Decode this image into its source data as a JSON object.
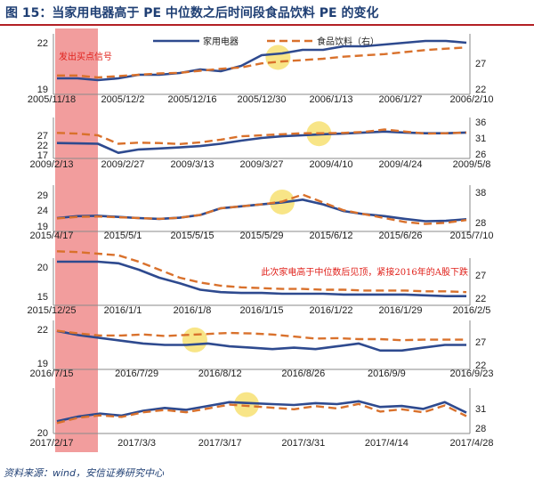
{
  "title": "图 15：当家用电器高于 PE 中位数之后时间段食品饮料 PE 的变化",
  "source": "资料来源：wind，安信证券研究中心",
  "colors": {
    "series_home_appliance": "#2e4a8f",
    "series_food_beverage": "#d9712c",
    "highlight_band": "#f08c8c",
    "highlight_circle": "#f7e27a",
    "note_text": "#e0201a",
    "axis": "#8a8a8a"
  },
  "legend": {
    "home_appliance": "家用电器",
    "food_beverage": "食品饮料（右）"
  },
  "chart_data": [
    {
      "type": "line",
      "x_labels": [
        "2005/11/18",
        "2005/12/2",
        "2005/12/16",
        "2005/12/30",
        "2006/1/13",
        "2006/1/27",
        "2006/2/10"
      ],
      "left_ticks": [
        "22",
        "19"
      ],
      "right_ticks": [
        "27",
        "22"
      ],
      "left_ylim": [
        19,
        22
      ],
      "right_ylim": [
        22,
        30
      ],
      "series": [
        {
          "name": "家用电器",
          "axis": "left",
          "values": [
            19.7,
            19.7,
            19.6,
            19.7,
            19.9,
            19.9,
            20.0,
            20.2,
            20.1,
            20.4,
            21.0,
            21.1,
            21.3,
            21.3,
            21.5,
            21.5,
            21.6,
            21.7,
            21.8,
            21.8,
            21.7
          ]
        },
        {
          "name": "食品饮料（右）",
          "axis": "right",
          "values": [
            24.3,
            24.3,
            24.0,
            24.2,
            24.4,
            24.6,
            24.7,
            25.0,
            25.3,
            25.5,
            26.1,
            26.4,
            26.6,
            26.8,
            27.1,
            27.3,
            27.5,
            27.8,
            28.1,
            28.3,
            28.5
          ]
        }
      ],
      "annotation": "发出买点信号",
      "highlight_x_index": 10.8
    },
    {
      "type": "line",
      "x_labels": [
        "2009/2/13",
        "2009/2/27",
        "2009/3/13",
        "2009/3/27",
        "2009/4/10",
        "2009/4/24",
        "2009/5/8"
      ],
      "left_ticks": [
        "27",
        "22",
        "17"
      ],
      "right_ticks": [
        "36",
        "31",
        "26"
      ],
      "left_ylim": [
        17,
        27
      ],
      "right_ylim": [
        26,
        36
      ],
      "series": [
        {
          "name": "家用电器",
          "axis": "left",
          "values": [
            20.5,
            20.4,
            20.3,
            17.6,
            18.6,
            18.9,
            19.2,
            19.6,
            20.3,
            21.2,
            22.0,
            22.5,
            22.8,
            23.1,
            23.3,
            23.6,
            23.9,
            23.6,
            23.4,
            23.4,
            23.6
          ]
        },
        {
          "name": "食品饮料（右）",
          "axis": "right",
          "values": [
            32.5,
            32.3,
            31.8,
            29.3,
            29.6,
            29.5,
            29.2,
            29.7,
            30.5,
            31.5,
            31.8,
            32.1,
            32.4,
            32.4,
            32.5,
            32.8,
            33.5,
            32.9,
            32.3,
            32.4,
            32.6
          ]
        }
      ],
      "highlight_x_index": 12.8
    },
    {
      "type": "line",
      "x_labels": [
        "2015/4/17",
        "2015/5/1",
        "2015/5/15",
        "2015/5/29",
        "2015/6/12",
        "2015/6/26",
        "2015/7/10"
      ],
      "left_ticks": [
        "29",
        "24",
        "19"
      ],
      "right_ticks": [
        "38",
        "28"
      ],
      "left_ylim": [
        19,
        29
      ],
      "right_ylim": [
        28,
        38
      ],
      "series": [
        {
          "name": "家用电器",
          "axis": "left",
          "values": [
            21.5,
            22.0,
            22.1,
            21.8,
            21.5,
            21.3,
            21.6,
            22.3,
            24.0,
            24.5,
            25.0,
            25.5,
            26.2,
            25.0,
            23.3,
            22.5,
            22.0,
            21.3,
            20.7,
            20.8,
            21.2
          ]
        },
        {
          "name": "食品饮料（右）",
          "axis": "right",
          "values": [
            30.4,
            30.8,
            30.9,
            30.7,
            30.5,
            30.3,
            30.6,
            31.3,
            33.0,
            33.5,
            34.0,
            34.7,
            36.5,
            34.5,
            32.5,
            31.5,
            30.5,
            29.5,
            29.0,
            29.3,
            30.0
          ]
        }
      ],
      "highlight_x_index": 11.0
    },
    {
      "type": "line",
      "x_labels": [
        "2015/12/25",
        "2016/1/1",
        "2016/1/8",
        "2016/1/15",
        "2016/1/22",
        "2016/1/29",
        "2016/2/5"
      ],
      "left_ticks": [
        "20",
        "15"
      ],
      "right_ticks": [
        "27",
        "22"
      ],
      "left_ylim": [
        15,
        20
      ],
      "right_ylim": [
        22,
        27
      ],
      "series": [
        {
          "name": "家用电器",
          "axis": "left",
          "values": [
            20.0,
            20.0,
            20.0,
            19.8,
            19.0,
            18.0,
            17.3,
            16.5,
            16.2,
            16.1,
            16.1,
            16.0,
            16.0,
            16.0,
            15.9,
            15.9,
            15.9,
            15.9,
            15.8,
            15.7,
            15.7
          ]
        },
        {
          "name": "食品饮料（右）",
          "axis": "right",
          "values": [
            28.3,
            28.2,
            28.0,
            27.8,
            27.0,
            26.0,
            25.0,
            24.4,
            24.0,
            23.8,
            23.7,
            23.6,
            23.6,
            23.5,
            23.5,
            23.4,
            23.4,
            23.4,
            23.3,
            23.3,
            23.2
          ]
        }
      ],
      "annotation": "此次家电高于中位数后见顶，紧接2016年的A股下跌"
    },
    {
      "type": "line",
      "x_labels": [
        "2016/7/15",
        "2016/7/29",
        "2016/8/12",
        "2016/8/26",
        "2016/9/9",
        "2016/9/23"
      ],
      "left_ticks": [
        "22",
        "19"
      ],
      "right_ticks": [
        "27",
        "22"
      ],
      "left_ylim": [
        19,
        22
      ],
      "right_ylim": [
        22,
        30
      ],
      "series": [
        {
          "name": "家用电器",
          "axis": "left",
          "values": [
            21.5,
            21.2,
            21.0,
            20.8,
            20.6,
            20.5,
            20.5,
            20.6,
            20.4,
            20.3,
            20.2,
            20.3,
            20.2,
            20.4,
            20.6,
            20.1,
            20.1,
            20.3,
            20.5,
            20.5
          ]
        },
        {
          "name": "食品饮料（右）",
          "axis": "right",
          "values": [
            28.7,
            28.2,
            27.8,
            27.8,
            28.0,
            27.7,
            27.9,
            28.1,
            28.3,
            28.2,
            28.0,
            27.6,
            27.2,
            27.3,
            27.1,
            27.1,
            26.9,
            27.0,
            27.0,
            27.0
          ]
        }
      ],
      "highlight_x_index": 6.4
    },
    {
      "type": "line",
      "x_labels": [
        "2017/2/17",
        "2017/3/3",
        "2017/3/17",
        "2017/3/31",
        "2017/4/14",
        "2017/4/28"
      ],
      "left_ticks": [
        "20"
      ],
      "right_ticks": [
        "31",
        "28"
      ],
      "left_ylim": [
        19.5,
        23.5
      ],
      "right_ylim": [
        27.5,
        32.5
      ],
      "series": [
        {
          "name": "家用电器",
          "axis": "left",
          "values": [
            20.4,
            20.9,
            21.2,
            21.0,
            21.5,
            21.8,
            21.6,
            22.0,
            22.4,
            22.3,
            22.2,
            22.1,
            22.3,
            22.2,
            22.5,
            21.9,
            22.0,
            21.7,
            22.4,
            21.3
          ]
        },
        {
          "name": "食品饮料（右）",
          "axis": "right",
          "values": [
            28.4,
            29.1,
            29.4,
            29.2,
            29.8,
            30.1,
            29.8,
            30.3,
            30.8,
            30.6,
            30.4,
            30.2,
            30.6,
            30.3,
            30.9,
            29.9,
            30.2,
            29.8,
            30.7,
            29.3
          ]
        }
      ],
      "highlight_x_index": 8.8
    }
  ]
}
